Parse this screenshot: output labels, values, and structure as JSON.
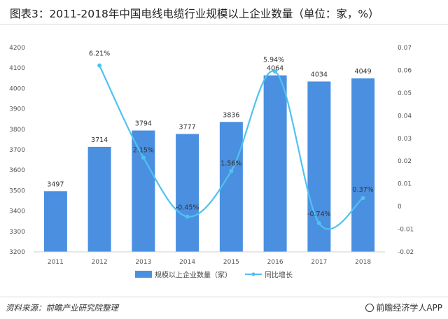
{
  "title": "图表3：2011-2018年中国电线电缆行业规模以上企业数量（单位：家，%）",
  "source": "资料来源：前瞻产业研究院整理",
  "brand": "前瞻经济学人APP",
  "chart_data": {
    "type": "bar",
    "categories": [
      "2011",
      "2012",
      "2013",
      "2014",
      "2015",
      "2016",
      "2017",
      "2018"
    ],
    "series": [
      {
        "name": "规模以上企业数量（家）",
        "type": "bar",
        "axis": "left",
        "values": [
          3497,
          3714,
          3794,
          3777,
          3836,
          4064,
          4034,
          4049
        ],
        "labels": [
          "3497",
          "3714",
          "3794",
          "3777",
          "3836",
          "4064",
          "4034",
          "4049"
        ],
        "color": "#4a8fe0"
      },
      {
        "name": "同比增长",
        "type": "line",
        "axis": "right",
        "values": [
          null,
          0.0621,
          0.0215,
          -0.0045,
          0.0156,
          0.0594,
          -0.0074,
          0.0037
        ],
        "labels": [
          "",
          "6.21%",
          "2.15%",
          "-0.45%",
          "1.56%",
          "5.94%",
          "-0.74%",
          "0.37%"
        ],
        "color": "#4ec3ef"
      }
    ],
    "y_left": {
      "min": 3200,
      "max": 4200,
      "step": 100,
      "ticks": [
        "3200",
        "3300",
        "3400",
        "3500",
        "3600",
        "3700",
        "3800",
        "3900",
        "4000",
        "4100",
        "4200"
      ]
    },
    "y_right": {
      "min": -0.02,
      "max": 0.07,
      "step": 0.01,
      "ticks": [
        "-0.02",
        "-0.01",
        "0",
        "0.01",
        "0.02",
        "0.03",
        "0.04",
        "0.05",
        "0.06",
        "0.07"
      ]
    },
    "legend_position": "bottom"
  }
}
